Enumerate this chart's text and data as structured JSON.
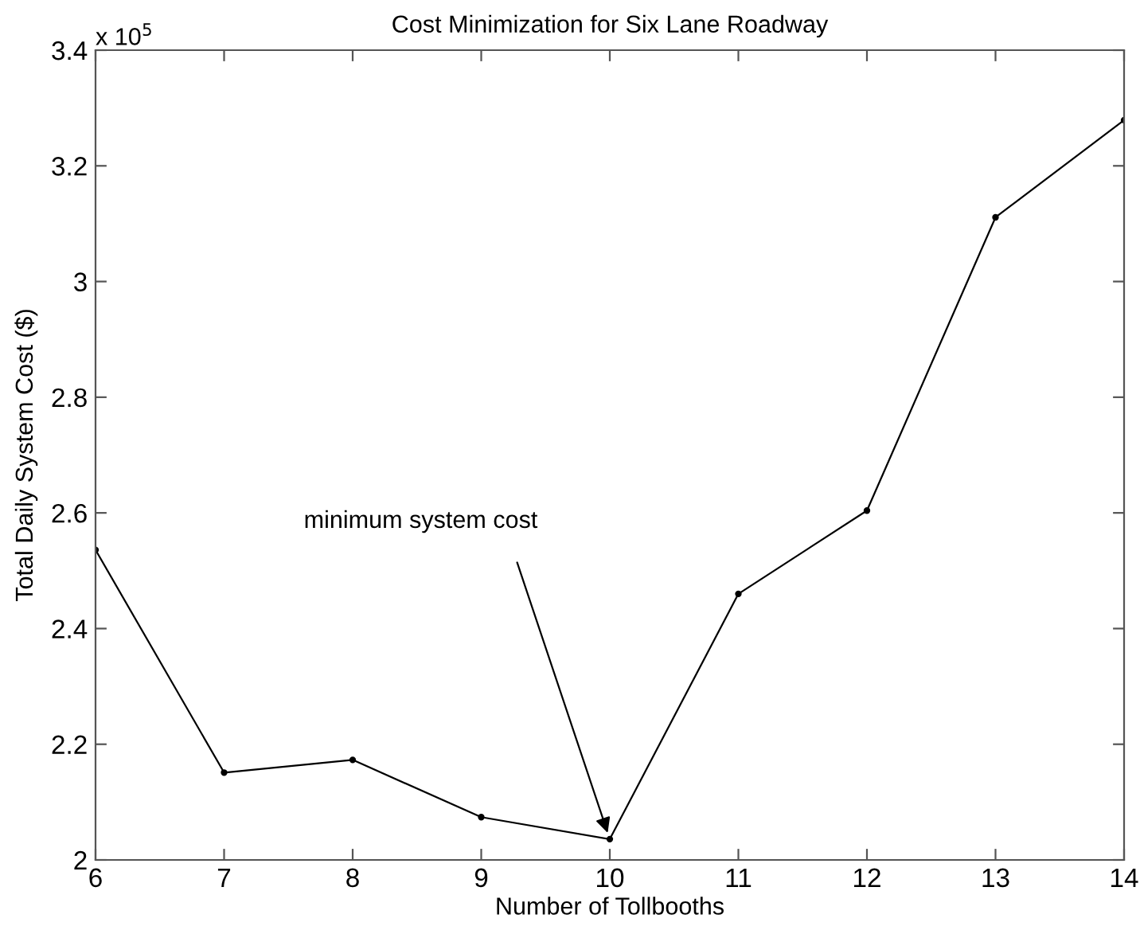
{
  "chart_data": {
    "type": "line",
    "title": "Cost Minimization for Six Lane Roadway",
    "xlabel": "Number of Tollbooths",
    "ylabel": "Total Daily System Cost ($)",
    "x": [
      6,
      7,
      8,
      9,
      10,
      11,
      12,
      13,
      14
    ],
    "series": [
      {
        "color": "#000000",
        "values": [
          2.536,
          2.151,
          2.173,
          2.074,
          2.036,
          2.46,
          2.604,
          3.111,
          3.279
        ]
      }
    ],
    "xlim": [
      6,
      14
    ],
    "xticks": [
      6,
      7,
      8,
      9,
      10,
      11,
      12,
      13,
      14
    ],
    "ylim": [
      2,
      3.4
    ],
    "yticks": [
      2,
      2.2,
      2.4,
      2.6,
      2.8,
      3,
      3.2,
      3.4
    ],
    "marker": "circle",
    "line_style": "solid",
    "grid": false,
    "legend": false,
    "annotations": [
      "x 10$^{5}$",
      {
        "text": "minimum system cost",
        "x": 10,
        "y": 2.036
      }
    ]
  }
}
